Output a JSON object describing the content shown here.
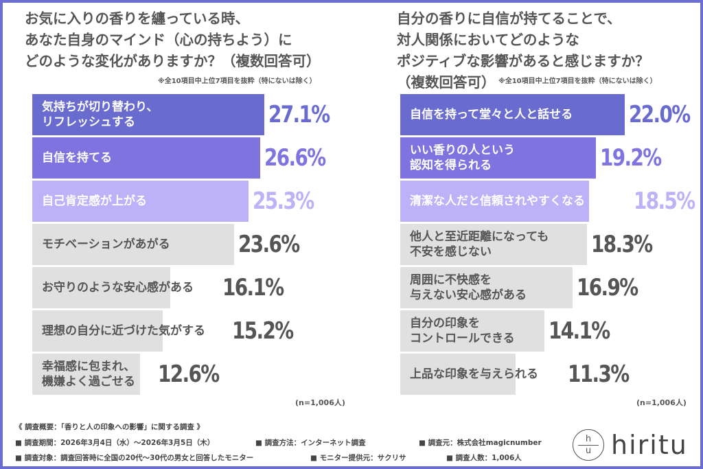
{
  "colors": {
    "rank1": "#6a6bcf",
    "rank2": "#7f73e0",
    "rank3": "#bdb1f7",
    "other": "#e0e0e0",
    "other_text": "#555555",
    "frame": "#6b6dd0"
  },
  "chart_data": [
    {
      "type": "bar",
      "orientation": "horizontal",
      "unit": "%",
      "title_lines": [
        "お気に入りの香りを纏っている時、",
        "あなた自身のマインド（心の持ちよう）に",
        "どのような変化がありますか？（複数回答可）"
      ],
      "note": "※全10項目中上位7項目を抜粋（特にないは除く）",
      "sample": "(n=1,006人)",
      "categories": [
        [
          "気持ちが切り替わり、",
          "リフレッシュする"
        ],
        [
          "自信を持てる"
        ],
        [
          "自己肯定感が上がる"
        ],
        [
          "モチベーションがあがる"
        ],
        [
          "お守りのような安心感がある"
        ],
        [
          "理想の自分に近づけた気がする"
        ],
        [
          "幸福感に包まれ、",
          "機嫌よく過ごせる"
        ]
      ],
      "values": [
        27.1,
        26.6,
        25.3,
        23.6,
        16.1,
        15.2,
        12.6
      ],
      "labels": [
        "27.1%",
        "26.6%",
        "25.3%",
        "23.6%",
        "16.1%",
        "15.2%",
        "12.6%"
      ]
    },
    {
      "type": "bar",
      "orientation": "horizontal",
      "unit": "%",
      "title_lines": [
        "自分の香りに自信が持てることで、",
        "対人関係においてどのような",
        "ポジティブな影響があると感じますか？",
        "（複数回答可）"
      ],
      "note": "※全10項目中上位7項目を抜粋（特にないは除く）",
      "sample": "(n=1,006人)",
      "categories": [
        [
          "自信を持って堂々と人と話せる"
        ],
        [
          "いい香りの人という",
          "認知を得られる"
        ],
        [
          "清潔な人だと信頼されやすくなる"
        ],
        [
          "他人と至近距離になっても",
          "不安を感じない"
        ],
        [
          "周囲に不快感を",
          "与えない安心感がある"
        ],
        [
          "自分の印象を",
          "コントロールできる"
        ],
        [
          "上品な印象を与えられる"
        ]
      ],
      "values": [
        22.0,
        19.2,
        18.5,
        18.3,
        16.9,
        14.1,
        11.3
      ],
      "labels": [
        "22.0%",
        "19.2%",
        "18.5%",
        "18.3%",
        "16.9%",
        "14.1%",
        "11.3%"
      ]
    }
  ],
  "footer": {
    "line1": "《 調査概要：「香りと人の印象への影響」に関する調査 》",
    "period": "■ 調査期間：2026年3月4日（水）～2026年3月5日（木）",
    "method": "■ 調査方法：インターネット調査",
    "source": "■ 調査元：株式会社magicnumber",
    "target": "■ 調査対象：調査回答時に全国の20代～30代の男女と回答したモニター",
    "provider": "■ モニター提供元：サクリサ",
    "count": "■ 調査人数：1,006人"
  },
  "logo": {
    "top": "h",
    "bottom": "u",
    "word": "hiritu"
  }
}
